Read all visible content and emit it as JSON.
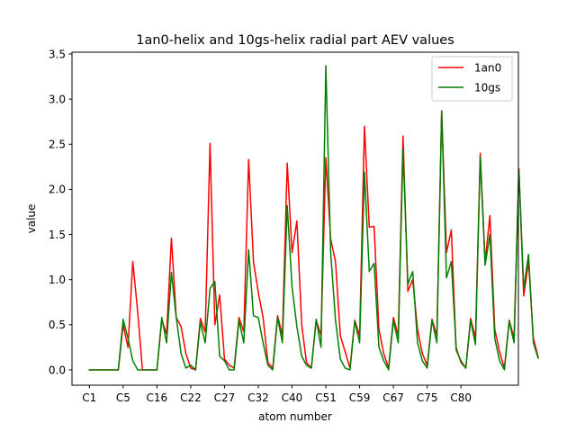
{
  "chart_data": {
    "type": "line",
    "title": "1an0-helix and 10gs-helix radial part AEV values",
    "xlabel": "atom number",
    "ylabel": "value",
    "ylim": [
      -0.17,
      3.52
    ],
    "yticks": [
      0.0,
      0.5,
      1.0,
      1.5,
      2.0,
      2.5,
      3.0,
      3.5
    ],
    "ytick_labels": [
      "0.0",
      "0.5",
      "1.0",
      "1.5",
      "2.0",
      "2.5",
      "3.0",
      "3.5"
    ],
    "xtick_labels": [
      "C1",
      "C5",
      "C16",
      "C22",
      "C27",
      "C32",
      "C40",
      "C51",
      "C59",
      "C67",
      "C75",
      "C80"
    ],
    "xtick_positions": [
      0,
      7,
      14,
      21,
      28,
      35,
      42,
      49,
      56,
      63,
      70,
      77
    ],
    "xlim": [
      -3.6,
      88.9
    ],
    "grid": false,
    "legend_position": "top-right",
    "series": [
      {
        "name": "1an0",
        "color": "#ff0000",
        "values": [
          0,
          0,
          0,
          0,
          0,
          0,
          0,
          0.5,
          0.25,
          1.2,
          0.65,
          0,
          0,
          0,
          0,
          0.55,
          0.4,
          1.46,
          0.58,
          0.48,
          0.18,
          0.02,
          0,
          0.57,
          0.42,
          2.51,
          0.5,
          0.83,
          0.12,
          0.05,
          0.02,
          0.58,
          0.42,
          2.33,
          1.2,
          0.86,
          0.58,
          0.08,
          0.02,
          0.6,
          0.38,
          2.29,
          1.3,
          1.65,
          0.5,
          0.08,
          0.02,
          0.55,
          0.38,
          2.35,
          1.45,
          1.2,
          0.38,
          0.2,
          0.02,
          0.55,
          0.38,
          2.7,
          1.58,
          1.59,
          0.45,
          0.18,
          0.02,
          0.58,
          0.38,
          2.59,
          0.87,
          1.0,
          0.45,
          0.18,
          0.05,
          0.56,
          0.38,
          2.87,
          1.3,
          1.55,
          0.22,
          0.1,
          0.02,
          0.57,
          0.35,
          2.4,
          1.2,
          1.71,
          0.45,
          0.2,
          0.02,
          0.55,
          0.35,
          2.23,
          0.82,
          1.2,
          0.35,
          0.14
        ]
      },
      {
        "name": "10gs",
        "color": "#008000",
        "values": [
          0,
          0,
          0,
          0,
          0,
          0,
          0,
          0.56,
          0.35,
          0.1,
          0,
          0,
          0,
          0,
          0,
          0.58,
          0.3,
          1.08,
          0.58,
          0.18,
          0.02,
          0.05,
          0,
          0.53,
          0.3,
          0.9,
          0.98,
          0.15,
          0.1,
          0,
          0,
          0.55,
          0.3,
          1.33,
          0.6,
          0.58,
          0.3,
          0.05,
          0,
          0.58,
          0.3,
          1.82,
          0.92,
          0.48,
          0.15,
          0.05,
          0.02,
          0.56,
          0.25,
          3.37,
          1.3,
          0.55,
          0.12,
          0.02,
          0,
          0.54,
          0.3,
          2.19,
          1.09,
          1.18,
          0.25,
          0.1,
          0,
          0.55,
          0.3,
          2.44,
          0.95,
          1.09,
          0.3,
          0.1,
          0.02,
          0.55,
          0.3,
          2.87,
          1.02,
          1.2,
          0.25,
          0.08,
          0.02,
          0.55,
          0.28,
          2.36,
          1.16,
          1.5,
          0.35,
          0.1,
          0,
          0.54,
          0.3,
          2.21,
          0.9,
          1.28,
          0.3,
          0.13
        ]
      }
    ]
  }
}
